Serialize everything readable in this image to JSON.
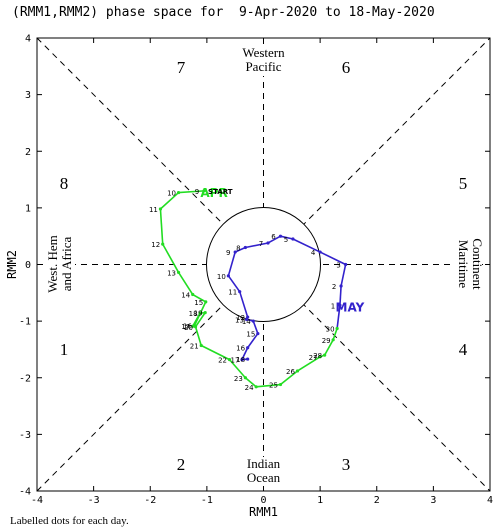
{
  "chart_data": {
    "type": "line",
    "title": "(RMM1,RMM2) phase space for  9-Apr-2020 to 18-May-2020",
    "xlabel": "RMM1",
    "ylabel": "RMM2",
    "xlim": [
      -4,
      4
    ],
    "ylim": [
      -4,
      4
    ],
    "xticks": [
      "-4",
      "-3",
      "-2",
      "-1",
      "0",
      "1",
      "2",
      "3",
      "4"
    ],
    "yticks": [
      "-4",
      "-3",
      "-2",
      "-1",
      "0",
      "1",
      "2",
      "3",
      "4"
    ],
    "phases": [
      "1",
      "2",
      "3",
      "4",
      "5",
      "6",
      "7",
      "8"
    ],
    "regions": {
      "top_line1": "Western",
      "top_line2": "Pacific",
      "bottom_line1": "Indian",
      "bottom_line2": "Ocean",
      "left_line1": "West. Hem",
      "left_line2": "and Africa",
      "right_line1": "Maritime",
      "right_line2": "Continent"
    },
    "start_label": "START",
    "footnote": "Labelled dots for each day.",
    "series": [
      {
        "name": "APR",
        "color": "#22dd22",
        "points": [
          {
            "day": "9",
            "x": -1.05,
            "y": 1.3
          },
          {
            "day": "10",
            "x": -1.5,
            "y": 1.27
          },
          {
            "day": "11",
            "x": -1.82,
            "y": 0.98
          },
          {
            "day": "12",
            "x": -1.78,
            "y": 0.36
          },
          {
            "day": "13",
            "x": -1.5,
            "y": -0.14
          },
          {
            "day": "14",
            "x": -1.25,
            "y": -0.53
          },
          {
            "day": "15",
            "x": -1.02,
            "y": -0.66
          },
          {
            "day": "16",
            "x": -1.22,
            "y": -1.08
          },
          {
            "day": "17",
            "x": -1.25,
            "y": -1.09
          },
          {
            "day": "18",
            "x": -1.12,
            "y": -0.86
          },
          {
            "day": "19",
            "x": -1.03,
            "y": -0.85
          },
          {
            "day": "20",
            "x": -1.2,
            "y": -1.1
          },
          {
            "day": "21",
            "x": -1.1,
            "y": -1.43
          },
          {
            "day": "22",
            "x": -0.6,
            "y": -1.68
          },
          {
            "day": "23",
            "x": -0.32,
            "y": -2.0
          },
          {
            "day": "24",
            "x": -0.13,
            "y": -2.16
          },
          {
            "day": "25",
            "x": 0.3,
            "y": -2.12
          },
          {
            "day": "26",
            "x": 0.6,
            "y": -1.88
          },
          {
            "day": "27",
            "x": 1.0,
            "y": -1.63
          },
          {
            "day": "28",
            "x": 1.08,
            "y": -1.6
          },
          {
            "day": "29",
            "x": 1.23,
            "y": -1.33
          },
          {
            "day": "30",
            "x": 1.3,
            "y": -1.13
          }
        ]
      },
      {
        "name": "MAY",
        "color": "#3322cc",
        "points": [
          {
            "day": "1",
            "x": 1.35,
            "y": -0.72
          },
          {
            "day": "2",
            "x": 1.37,
            "y": -0.38
          },
          {
            "day": "3",
            "x": 1.45,
            "y": 0.0
          },
          {
            "day": "4",
            "x": 1.0,
            "y": 0.22
          },
          {
            "day": "5",
            "x": 0.52,
            "y": 0.45
          },
          {
            "day": "6",
            "x": 0.3,
            "y": 0.5
          },
          {
            "day": "7",
            "x": 0.08,
            "y": 0.38
          },
          {
            "day": "8",
            "x": -0.32,
            "y": 0.3
          },
          {
            "day": "9",
            "x": -0.5,
            "y": 0.22
          },
          {
            "day": "10",
            "x": -0.62,
            "y": -0.2
          },
          {
            "day": "11",
            "x": -0.42,
            "y": -0.48
          },
          {
            "day": "12",
            "x": -0.28,
            "y": -0.93
          },
          {
            "day": "13",
            "x": -0.3,
            "y": -0.97
          },
          {
            "day": "14",
            "x": -0.18,
            "y": -1.0
          },
          {
            "day": "15",
            "x": -0.1,
            "y": -1.22
          },
          {
            "day": "16",
            "x": -0.28,
            "y": -1.47
          },
          {
            "day": "17",
            "x": -0.38,
            "y": -1.68
          },
          {
            "day": "18",
            "x": -0.28,
            "y": -1.67
          }
        ]
      }
    ]
  }
}
